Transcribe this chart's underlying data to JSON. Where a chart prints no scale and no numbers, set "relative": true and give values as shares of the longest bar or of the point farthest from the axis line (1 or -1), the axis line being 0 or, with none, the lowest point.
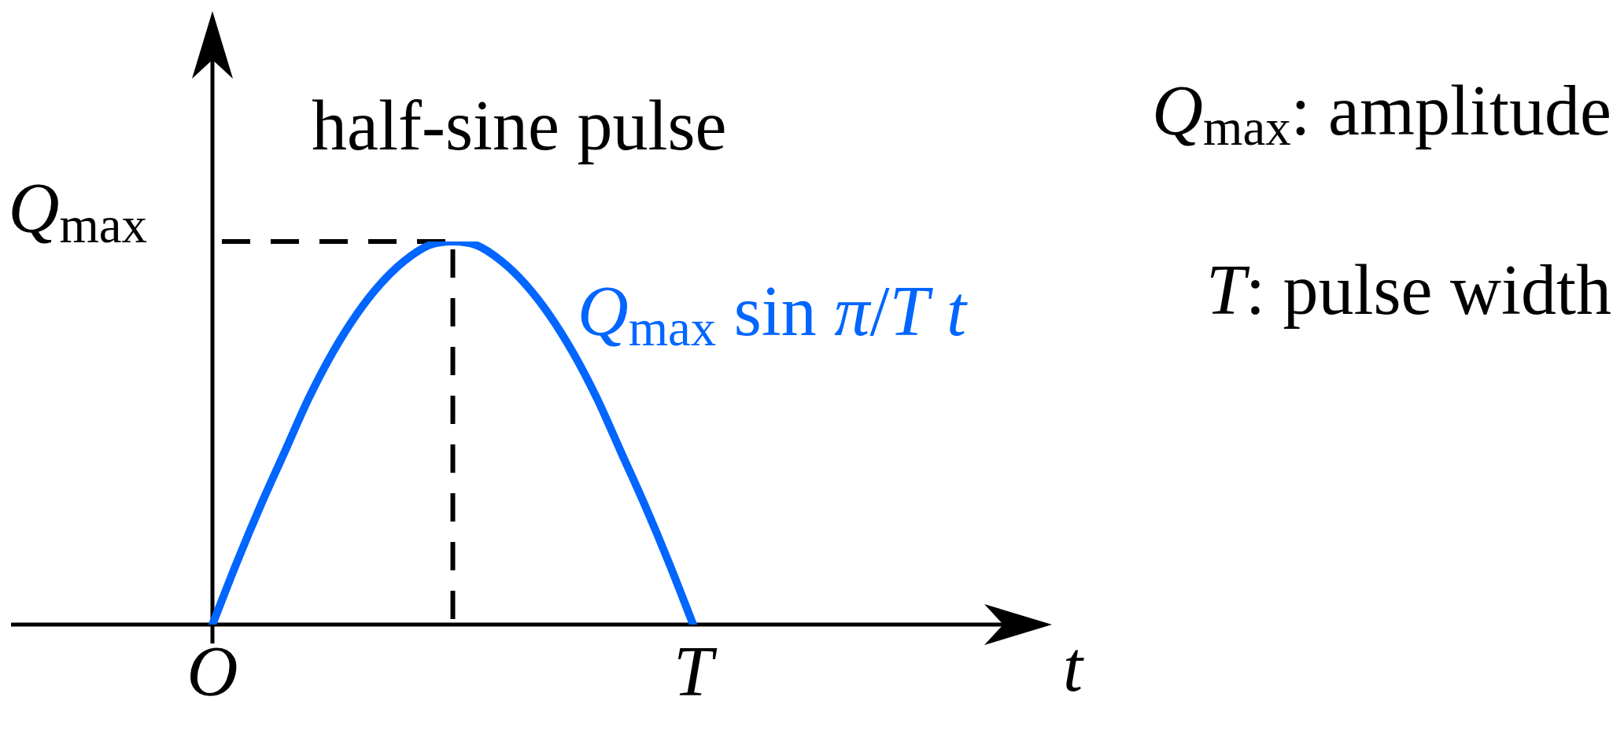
{
  "chart_data": {
    "type": "line",
    "title": "half-sine pulse",
    "xlabel": "t",
    "categories": [
      "O",
      null,
      null,
      null,
      null,
      null,
      null,
      null,
      null,
      null,
      null,
      null,
      null,
      null,
      null,
      null,
      null,
      null,
      null,
      null,
      "T"
    ],
    "series": [
      {
        "name": "Q$_{max}$ sin π/T t",
        "color": "#0066ff",
        "values": [
          0,
          0.16,
          0.31,
          0.45,
          0.59,
          0.71,
          0.81,
          0.89,
          0.95,
          0.99,
          1,
          0.99,
          0.95,
          0.89,
          0.81,
          0.71,
          0.59,
          0.45,
          0.31,
          0.16,
          0
        ]
      }
    ],
    "relative": true,
    "ref_lines": [
      {
        "axis": "y",
        "value": 1,
        "label": "Q$_{max}$",
        "line_style": "dashed",
        "color": "#000000"
      }
    ],
    "annotations": [
      "Q$_{max}$: amplitude",
      "T: pulse width"
    ]
  }
}
